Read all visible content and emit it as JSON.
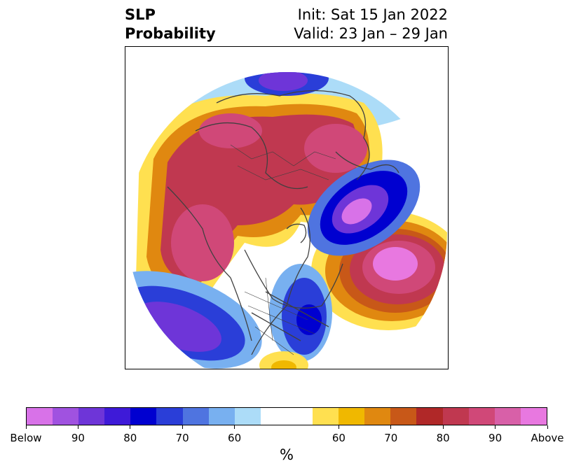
{
  "header": {
    "variable": "SLP",
    "measure": "Probability",
    "init": "Init: Sat 15 Jan 2022",
    "valid": "Valid: 23 Jan – 29 Jan"
  },
  "colorbar": {
    "unit": "%",
    "colors": [
      "#d872e8",
      "#a052e0",
      "#6e35d8",
      "#3e1ad8",
      "#0000d0",
      "#2a3ed8",
      "#4f74e0",
      "#78b0f0",
      "#acdcf8",
      "#ffffff",
      "#ffffff",
      "#ffe050",
      "#f0b800",
      "#e08810",
      "#c85818",
      "#b02828",
      "#c03850",
      "#d04878",
      "#d860a8",
      "#e878e0"
    ],
    "labels": [
      "Below",
      "90",
      "80",
      "70",
      "60",
      "60",
      "70",
      "80",
      "90",
      "Above"
    ]
  }
}
